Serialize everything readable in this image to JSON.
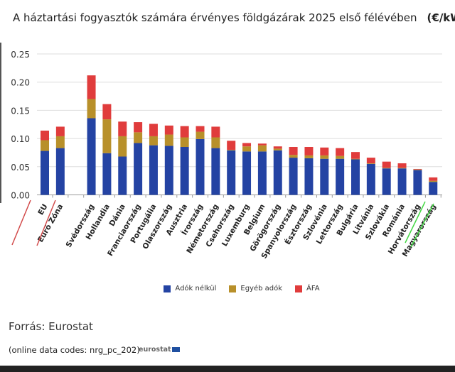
{
  "chart_data": {
    "type": "bar",
    "stacked": true,
    "title": "A háztartási fogyasztók számára érvényes földgázárak 2025 első félévében",
    "unit": "(€/kWh)",
    "categories": [
      "EU",
      "Euró Zóna",
      "",
      "Svédország",
      "Hollandia",
      "Dánia",
      "Franciaország",
      "Portugália",
      "Olaszország",
      "Ausztria",
      "Írország",
      "Németország",
      "Csehország",
      "Luxemburg",
      "Belgium",
      "Görögország",
      "Spanyolország",
      "Észtország",
      "Szlovénia",
      "Lettország",
      "Bulgária",
      "Litvánia",
      "Szlovákia",
      "Románia",
      "Horvátország",
      "Magyarország"
    ],
    "series": [
      {
        "name": "Adók nélkül",
        "color": "#2443a3",
        "values": [
          0.078,
          0.083,
          null,
          0.136,
          0.074,
          0.068,
          0.092,
          0.088,
          0.087,
          0.085,
          0.099,
          0.083,
          0.079,
          0.077,
          0.077,
          0.079,
          0.066,
          0.065,
          0.064,
          0.064,
          0.063,
          0.055,
          0.047,
          0.047,
          0.044,
          0.023
        ]
      },
      {
        "name": "Egyéb adók",
        "color": "#b8902a",
        "values": [
          0.019,
          0.021,
          null,
          0.034,
          0.06,
          0.036,
          0.019,
          0.016,
          0.02,
          0.017,
          0.013,
          0.019,
          0.001,
          0.009,
          0.011,
          0.003,
          0.005,
          0.005,
          0.006,
          0.005,
          0.001,
          0.001,
          0.001,
          0.001,
          0.001,
          0.002
        ]
      },
      {
        "name": "ÁFA",
        "color": "#e03c3c",
        "values": [
          0.017,
          0.017,
          null,
          0.042,
          0.027,
          0.026,
          0.018,
          0.022,
          0.016,
          0.02,
          0.01,
          0.019,
          0.016,
          0.006,
          0.003,
          0.004,
          0.014,
          0.015,
          0.014,
          0.014,
          0.012,
          0.01,
          0.011,
          0.008,
          0.001,
          0.006
        ]
      }
    ],
    "ylim": [
      0,
      0.25
    ],
    "yticks": [
      "0.00",
      "0.05",
      "0.10",
      "0.15",
      "0.20",
      "0.25"
    ],
    "grid": true,
    "legend": "bottom",
    "highlight_red": [
      "EU",
      "Euró Zóna"
    ],
    "highlight_green": [
      "Horvátország",
      "Magyarország"
    ]
  },
  "footer": {
    "source": "Forrás: Eurostat",
    "codes": "(online data codes: nrg_pc_202)",
    "logo": "eurostat"
  }
}
